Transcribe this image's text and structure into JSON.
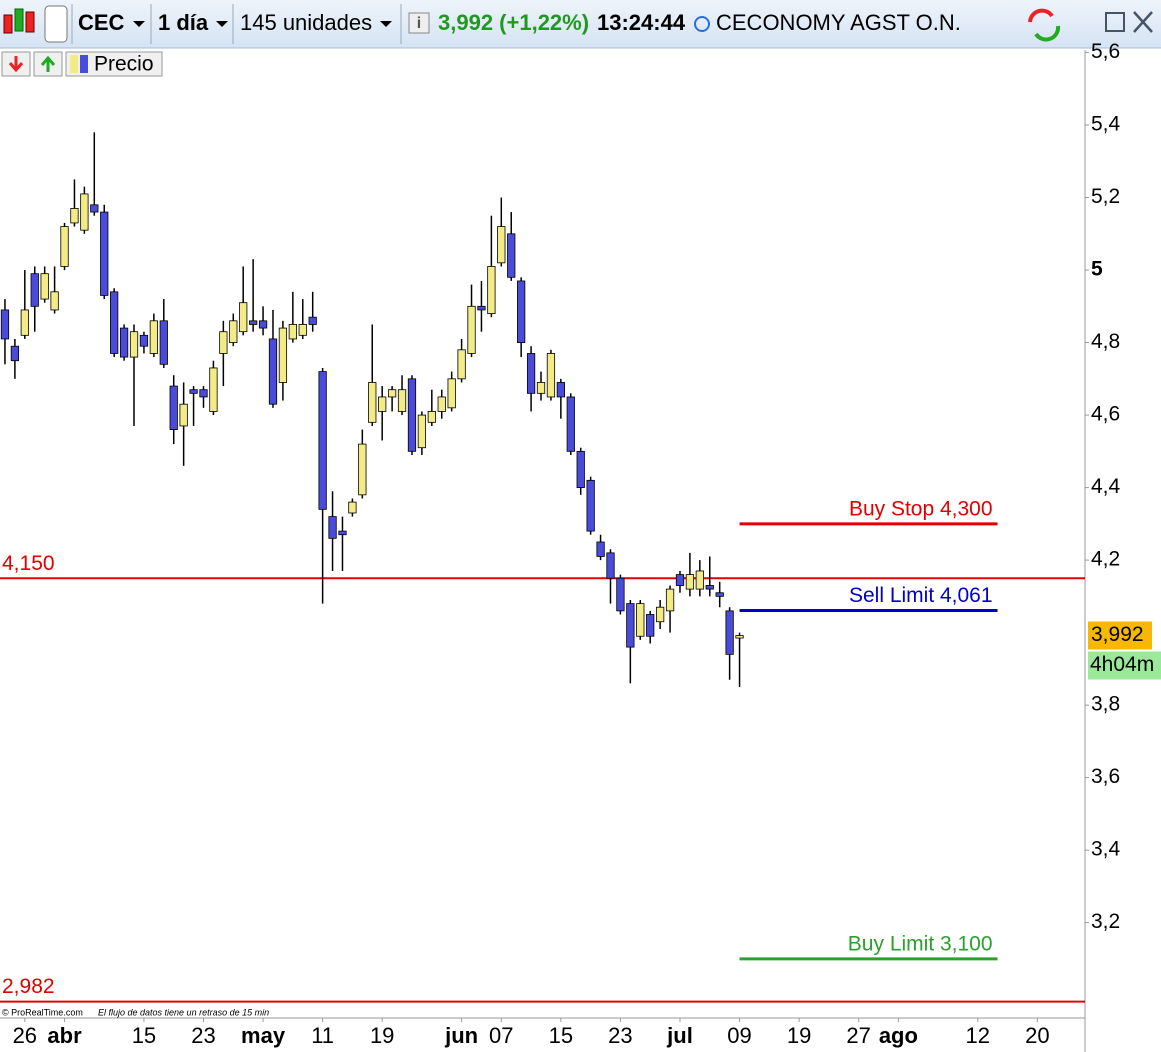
{
  "toolbar": {
    "symbol": "CEC",
    "period": "1 día",
    "units": "145 unidades",
    "quote": "3,992 (+1,22%)",
    "time": "13:24:44",
    "name": "CECONOMY AGST O.N.",
    "legend": "Precio"
  },
  "footer": {
    "source": "© ProRealTime.com",
    "note": "El flujo de datos tiene un retraso de 15 min"
  },
  "chart_data": {
    "type": "candlestick",
    "up_color": "#f3ec86",
    "down_color": "#4b4bd9",
    "x": [
      0,
      1,
      2,
      3,
      4,
      5,
      6,
      7,
      8,
      9,
      10,
      11,
      12,
      13,
      14,
      15,
      16,
      17,
      18,
      19,
      20,
      21,
      22,
      23,
      24,
      25,
      26,
      27,
      28,
      29,
      30,
      31,
      32,
      33,
      34,
      35,
      36,
      37,
      38,
      39,
      40,
      41,
      42,
      43,
      44,
      45,
      46,
      47,
      48,
      49,
      50,
      51,
      52,
      53,
      54,
      55,
      56,
      57,
      58,
      59,
      60,
      61,
      62,
      63,
      64,
      65,
      66,
      67,
      68,
      69,
      70,
      71,
      72,
      73,
      74
    ],
    "open": [
      4.89,
      4.79,
      4.82,
      4.99,
      4.92,
      4.89,
      5.01,
      5.13,
      5.11,
      5.18,
      5.16,
      4.94,
      4.84,
      4.76,
      4.82,
      4.77,
      4.86,
      4.68,
      4.57,
      4.67,
      4.67,
      4.61,
      4.77,
      4.8,
      4.83,
      4.86,
      4.86,
      4.81,
      4.69,
      4.81,
      4.82,
      4.87,
      4.72,
      4.32,
      4.28,
      4.33,
      4.38,
      4.58,
      4.61,
      4.65,
      4.61,
      4.7,
      4.51,
      4.58,
      4.61,
      4.62,
      4.7,
      4.77,
      4.9,
      4.88,
      5.02,
      5.1,
      4.97,
      4.77,
      4.66,
      4.65,
      4.69,
      4.65,
      4.5,
      4.42,
      4.25,
      4.22,
      4.15,
      4.08,
      3.99,
      4.05,
      4.03,
      4.06,
      4.16,
      4.12,
      4.12,
      4.13,
      4.11,
      4.06,
      3.985
    ],
    "high": [
      4.92,
      4.81,
      5.0,
      5.01,
      5.01,
      5.01,
      5.13,
      5.25,
      5.23,
      5.38,
      5.18,
      4.95,
      4.85,
      4.85,
      4.83,
      4.88,
      4.92,
      4.71,
      4.69,
      4.68,
      4.68,
      4.75,
      4.86,
      4.88,
      5.01,
      5.03,
      4.9,
      4.89,
      4.86,
      4.94,
      4.92,
      4.94,
      4.73,
      4.39,
      4.32,
      4.37,
      4.56,
      4.85,
      4.68,
      4.68,
      4.71,
      4.71,
      4.61,
      4.67,
      4.67,
      4.72,
      4.81,
      4.96,
      4.97,
      5.15,
      5.2,
      5.16,
      4.98,
      4.79,
      4.72,
      4.78,
      4.7,
      4.66,
      4.51,
      4.43,
      4.27,
      4.23,
      4.16,
      4.09,
      4.09,
      4.06,
      4.09,
      4.13,
      4.17,
      4.22,
      4.2,
      4.21,
      4.14,
      4.07,
      4.0
    ],
    "low": [
      4.74,
      4.7,
      4.81,
      4.83,
      4.91,
      4.88,
      5.0,
      5.12,
      5.1,
      5.15,
      4.92,
      4.76,
      4.75,
      4.57,
      4.77,
      4.76,
      4.73,
      4.52,
      4.46,
      4.57,
      4.62,
      4.6,
      4.68,
      4.79,
      4.82,
      4.83,
      4.82,
      4.62,
      4.64,
      4.8,
      4.81,
      4.83,
      4.08,
      4.17,
      4.17,
      4.32,
      4.37,
      4.57,
      4.53,
      4.61,
      4.6,
      4.49,
      4.49,
      4.57,
      4.59,
      4.61,
      4.69,
      4.76,
      4.83,
      4.87,
      5.01,
      4.97,
      4.76,
      4.61,
      4.64,
      4.64,
      4.59,
      4.49,
      4.38,
      4.27,
      4.2,
      4.08,
      4.05,
      3.86,
      3.98,
      3.97,
      4.01,
      4.0,
      4.11,
      4.1,
      4.1,
      4.1,
      4.07,
      3.87,
      3.85
    ],
    "close": [
      4.81,
      4.75,
      4.89,
      4.9,
      4.99,
      4.94,
      5.12,
      5.17,
      5.21,
      5.16,
      4.93,
      4.77,
      4.76,
      4.83,
      4.79,
      4.86,
      4.74,
      4.56,
      4.63,
      4.66,
      4.65,
      4.73,
      4.83,
      4.86,
      4.91,
      4.85,
      4.84,
      4.63,
      4.84,
      4.85,
      4.85,
      4.85,
      4.34,
      4.26,
      4.27,
      4.36,
      4.52,
      4.69,
      4.65,
      4.67,
      4.67,
      4.5,
      4.6,
      4.61,
      4.65,
      4.7,
      4.78,
      4.9,
      4.89,
      5.01,
      5.12,
      4.98,
      4.8,
      4.66,
      4.69,
      4.77,
      4.65,
      4.5,
      4.4,
      4.28,
      4.21,
      4.15,
      4.06,
      3.96,
      4.08,
      3.99,
      4.07,
      4.12,
      4.13,
      4.16,
      4.17,
      4.12,
      4.1,
      3.94,
      3.992
    ],
    "xlim": [
      -0.5,
      108.8
    ],
    "xticks": [
      {
        "value": 2,
        "label": "26"
      },
      {
        "value": 6,
        "label": "abr"
      },
      {
        "value": 14,
        "label": "15"
      },
      {
        "value": 20,
        "label": "23"
      },
      {
        "value": 26,
        "label": "may"
      },
      {
        "value": 32,
        "label": "11"
      },
      {
        "value": 38,
        "label": "19"
      },
      {
        "value": 46,
        "label": "jun"
      },
      {
        "value": 50,
        "label": "07"
      },
      {
        "value": 56,
        "label": "15"
      },
      {
        "value": 62,
        "label": "23"
      },
      {
        "value": 68,
        "label": "jul"
      },
      {
        "value": 74,
        "label": "09"
      },
      {
        "value": 80,
        "label": "19"
      },
      {
        "value": 86,
        "label": "27"
      },
      {
        "value": 90,
        "label": "ago"
      },
      {
        "value": 98,
        "label": "12"
      },
      {
        "value": 104,
        "label": "20"
      }
    ],
    "ylim": [
      2.937,
      5.607
    ],
    "yticks": [
      {
        "value": 3.2,
        "label": "3,2"
      },
      {
        "value": 3.4,
        "label": "3,4"
      },
      {
        "value": 3.6,
        "label": "3,6"
      },
      {
        "value": 3.8,
        "label": "3,8"
      },
      {
        "value": 4.2,
        "label": "4,2"
      },
      {
        "value": 4.4,
        "label": "4,4"
      },
      {
        "value": 4.6,
        "label": "4,6"
      },
      {
        "value": 4.8,
        "label": "4,8"
      },
      5,
      {
        "value": 5.2,
        "label": "5,2"
      },
      {
        "value": 5.4,
        "label": "5,4"
      },
      {
        "value": 5.6,
        "label": "5,6"
      }
    ],
    "levels": [
      {
        "value": 4.15,
        "label": "4,150",
        "color": "#e00000"
      },
      {
        "value": 2.982,
        "label": "2,982",
        "color": "#e00000"
      }
    ],
    "orders": [
      {
        "value": 4.3,
        "label": "Buy Stop 4,300",
        "color": "#e00000"
      },
      {
        "value": 4.061,
        "label": "Sell Limit 4,061",
        "color": "#0000cc"
      },
      {
        "value": 3.1,
        "label": "Buy Limit 3,100",
        "color": "#2ca02c"
      }
    ],
    "last_price": {
      "value": 3.992,
      "label": "3,992",
      "color": "#f6b800"
    },
    "countdown": "4h04m"
  }
}
